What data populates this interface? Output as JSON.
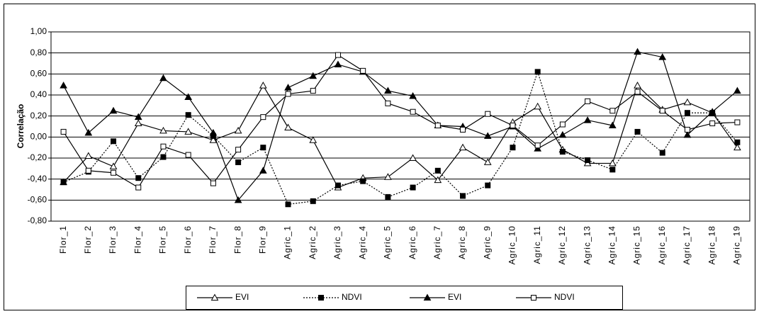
{
  "chart_data": {
    "type": "line",
    "ylabel": "Correlação",
    "categories": [
      "Flor_1",
      "Flor_2",
      "Flor_3",
      "Flor_4",
      "Flor_5",
      "Flor_6",
      "Flor_7",
      "Flor_8",
      "Flor_9",
      "Agric_1",
      "Agric_2",
      "Agric_3",
      "Agric_4",
      "Agric_5",
      "Agric_6",
      "Agric_7",
      "Agric_8",
      "Agric_9",
      "Agric_10",
      "Agric_11",
      "Agric_12",
      "Agric_13",
      "Agric_14",
      "Agric_15",
      "Agric_16",
      "Agric_17",
      "Agric_18",
      "Agric_19"
    ],
    "series": [
      {
        "name": "EVI",
        "color": "#000000",
        "marker": "triangle-open",
        "dashed": false,
        "values": [
          -0.43,
          -0.18,
          -0.28,
          0.13,
          0.06,
          0.05,
          -0.03,
          0.06,
          0.49,
          0.09,
          -0.03,
          -0.48,
          -0.39,
          -0.38,
          -0.2,
          -0.41,
          -0.1,
          -0.24,
          0.14,
          0.29,
          -0.12,
          -0.25,
          -0.25,
          0.49,
          0.26,
          0.33,
          0.23,
          -0.1
        ]
      },
      {
        "name": "NDVI",
        "color": "#000000",
        "marker": "square-filled",
        "dashed": true,
        "values": [
          -0.43,
          -0.33,
          -0.04,
          -0.39,
          -0.19,
          0.21,
          0.01,
          -0.24,
          -0.1,
          -0.64,
          -0.61,
          -0.46,
          -0.42,
          -0.57,
          -0.48,
          -0.32,
          -0.56,
          -0.46,
          -0.1,
          0.62,
          -0.14,
          -0.22,
          -0.31,
          0.05,
          -0.15,
          0.23,
          0.23,
          -0.05
        ]
      },
      {
        "name": "EVI",
        "color": "#000000",
        "marker": "triangle-filled",
        "dashed": false,
        "values": [
          0.49,
          0.04,
          0.25,
          0.19,
          0.56,
          0.38,
          0.04,
          -0.6,
          -0.32,
          0.47,
          0.58,
          0.69,
          0.62,
          0.44,
          0.39,
          0.11,
          0.1,
          0.01,
          0.1,
          -0.11,
          0.02,
          0.16,
          0.11,
          0.81,
          0.76,
          0.02,
          0.24,
          0.44
        ]
      },
      {
        "name": "NDVI",
        "color": "#000000",
        "marker": "square-open",
        "dashed": false,
        "values": [
          0.05,
          -0.32,
          -0.34,
          -0.48,
          -0.09,
          -0.17,
          -0.44,
          -0.12,
          0.19,
          0.41,
          0.44,
          0.78,
          0.63,
          0.32,
          0.24,
          0.11,
          0.07,
          0.22,
          0.11,
          -0.08,
          0.12,
          0.34,
          0.25,
          0.43,
          0.25,
          0.07,
          0.13,
          0.14
        ]
      }
    ],
    "ylim": [
      -0.8,
      1.0
    ],
    "yticks": [
      {
        "value": -0.8,
        "label": "-0,80"
      },
      {
        "value": -0.6,
        "label": "-0,60"
      },
      {
        "value": -0.4,
        "label": "-0,40"
      },
      {
        "value": -0.2,
        "label": "-0,20"
      },
      {
        "value": 0,
        "label": "0,00"
      },
      {
        "value": 0.2,
        "label": "0,20"
      },
      {
        "value": 0.4,
        "label": "0,40"
      },
      {
        "value": 0.6,
        "label": "0,60"
      },
      {
        "value": 0.8,
        "label": "0,80"
      },
      {
        "value": 1.0,
        "label": "1,00"
      }
    ],
    "grid": true,
    "legend": "bottom"
  }
}
